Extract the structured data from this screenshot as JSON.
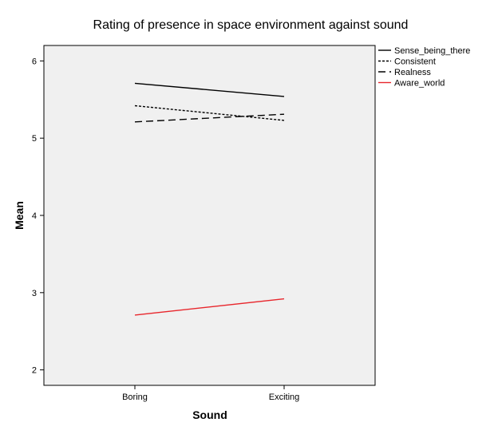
{
  "chart_data": {
    "type": "line",
    "title": "Rating of presence in space environment against sound",
    "xlabel": "Sound",
    "ylabel": "Mean",
    "categories": [
      "Boring",
      "Exciting"
    ],
    "ylim": [
      1.8,
      6.2
    ],
    "yticks": [
      2,
      3,
      4,
      5,
      6
    ],
    "grid": false,
    "legend_position": "top-right outside plot",
    "plot_background": "#f0f0f0",
    "series": [
      {
        "name": "Sense_being_there",
        "values": [
          5.71,
          5.54
        ],
        "color": "#000000",
        "dash": "solid"
      },
      {
        "name": "Consistent",
        "values": [
          5.42,
          5.23
        ],
        "color": "#000000",
        "dash": "dotted"
      },
      {
        "name": "Realness",
        "values": [
          5.21,
          5.31
        ],
        "color": "#000000",
        "dash": "dashed"
      },
      {
        "name": "Aware_world",
        "values": [
          2.71,
          2.92
        ],
        "color": "#e8262c",
        "dash": "solid"
      }
    ]
  }
}
